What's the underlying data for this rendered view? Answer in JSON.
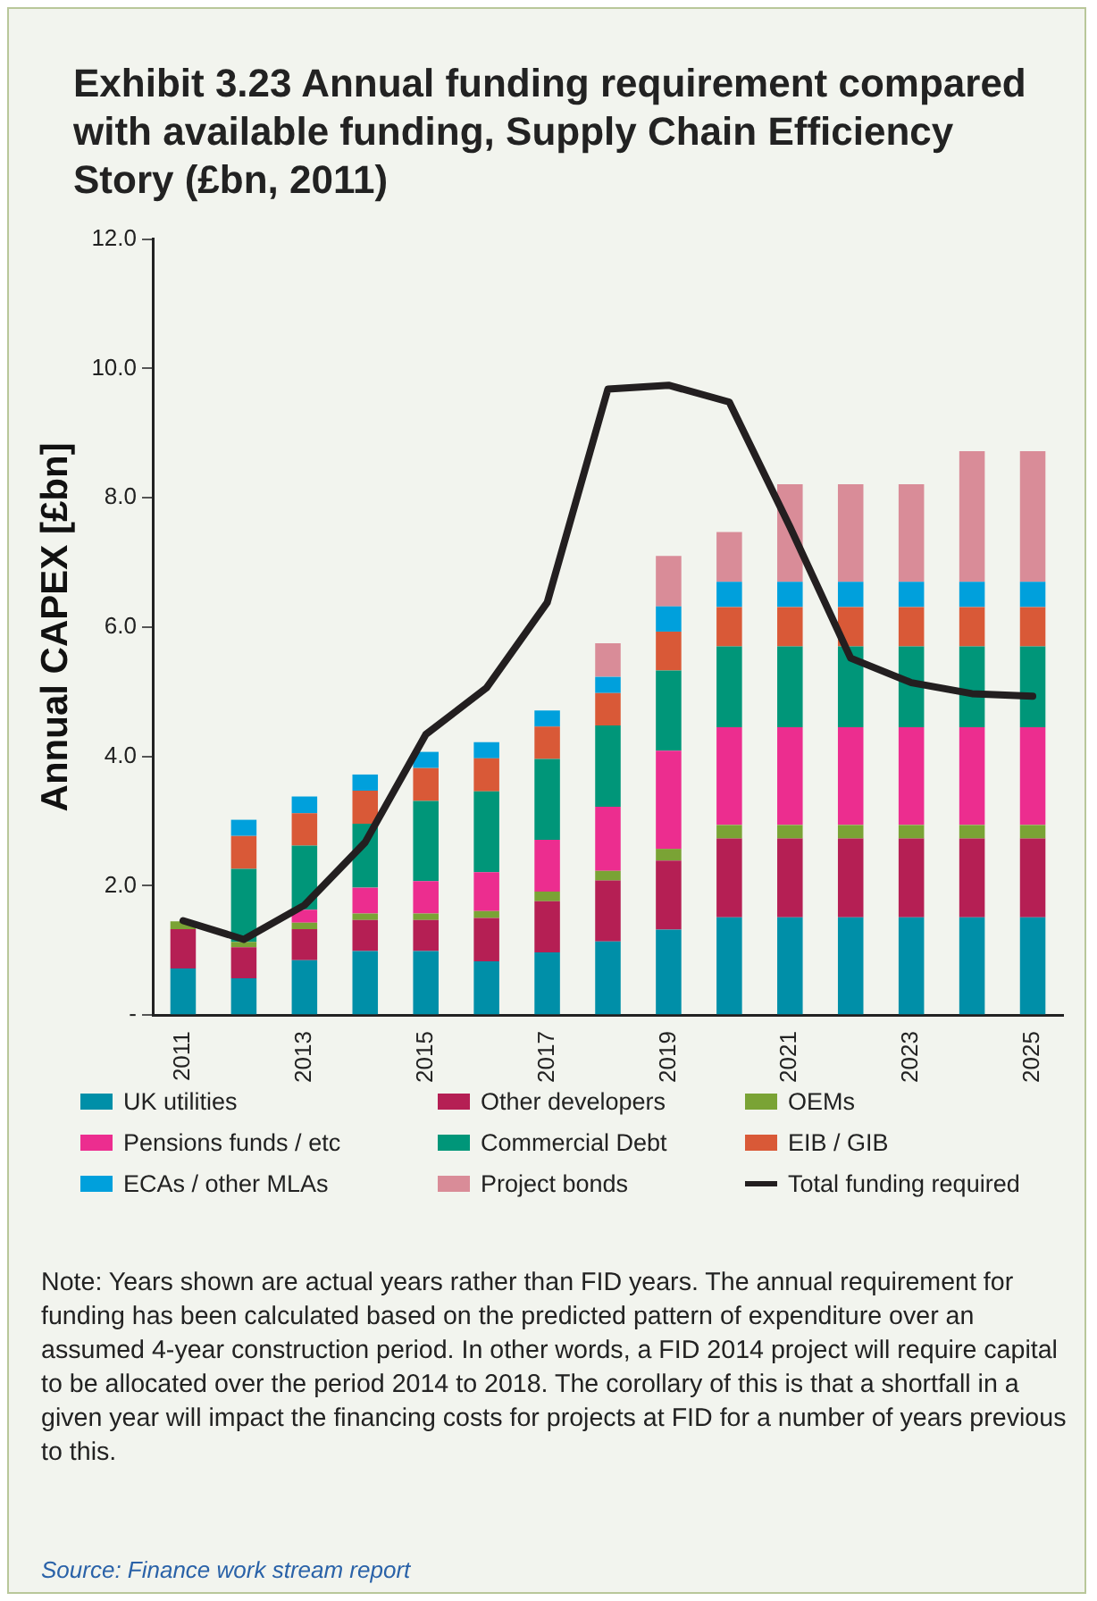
{
  "chart_data": {
    "type": "bar",
    "stacked": true,
    "title": "Exhibit 3.23 Annual funding requirement compared with available funding, Supply Chain Efficiency Story (£bn, 2011)",
    "ylabel": "Annual CAPEX [£bn]",
    "categories": [
      "2011",
      null,
      "2013",
      null,
      "2015",
      null,
      "2017",
      null,
      "2019",
      null,
      "2021",
      null,
      "2023",
      null,
      "2025"
    ],
    "ylim": [
      0,
      12
    ],
    "yticks": [
      {
        "value": 0,
        "label": "-"
      },
      {
        "value": 2,
        "label": "2.0"
      },
      {
        "value": 4,
        "label": "4.0"
      },
      {
        "value": 6,
        "label": "6.0"
      },
      {
        "value": 8,
        "label": "8.0"
      },
      {
        "value": 10,
        "label": "10.0"
      },
      {
        "value": 12,
        "label": "12.0"
      }
    ],
    "grid": false,
    "legend": "bottom",
    "series": [
      {
        "name": "UK utilities",
        "color": "#008fa8",
        "values": [
          0.72,
          0.57,
          0.85,
          0.99,
          0.99,
          0.83,
          0.97,
          1.14,
          1.32,
          1.51,
          1.51,
          1.51,
          1.51,
          1.51,
          1.51
        ]
      },
      {
        "name": "Other developers",
        "color": "#b51f54",
        "values": [
          0.61,
          0.48,
          0.48,
          0.48,
          0.48,
          0.67,
          0.79,
          0.94,
          1.07,
          1.22,
          1.22,
          1.22,
          1.22,
          1.22,
          1.22
        ]
      },
      {
        "name": "OEMs",
        "color": "#7aa335",
        "values": [
          0.12,
          0.08,
          0.1,
          0.1,
          0.1,
          0.11,
          0.15,
          0.15,
          0.18,
          0.21,
          0.21,
          0.21,
          0.21,
          0.21,
          0.21
        ]
      },
      {
        "name": "Pensions funds / etc",
        "color": "#ec2d8f",
        "values": [
          0,
          0,
          0.2,
          0.4,
          0.5,
          0.6,
          0.8,
          0.99,
          1.52,
          1.51,
          1.51,
          1.51,
          1.51,
          1.51,
          1.51
        ]
      },
      {
        "name": "Commercial Debt",
        "color": "#009679",
        "values": [
          0,
          1.13,
          0.99,
          0.99,
          1.24,
          1.25,
          1.25,
          1.26,
          1.24,
          1.25,
          1.25,
          1.25,
          1.25,
          1.25,
          1.25
        ]
      },
      {
        "name": "EIB / GIB",
        "color": "#d95937",
        "values": [
          0,
          0.51,
          0.5,
          0.51,
          0.51,
          0.51,
          0.5,
          0.5,
          0.6,
          0.61,
          0.61,
          0.61,
          0.61,
          0.61,
          0.61
        ]
      },
      {
        "name": "ECAs / other MLAs",
        "color": "#00a0dc",
        "values": [
          0,
          0.25,
          0.26,
          0.25,
          0.25,
          0.25,
          0.25,
          0.25,
          0.39,
          0.39,
          0.39,
          0.39,
          0.39,
          0.39,
          0.39
        ]
      },
      {
        "name": "Project bonds",
        "color": "#d98c98",
        "values": [
          0,
          0,
          0,
          0,
          0,
          0,
          0,
          0.52,
          0.78,
          0.77,
          1.51,
          1.51,
          1.51,
          2.02,
          2.02
        ]
      },
      {
        "name": "Total funding required",
        "type": "line",
        "color": "#231f20",
        "values": [
          1.46,
          1.17,
          1.7,
          2.67,
          4.34,
          5.06,
          6.38,
          9.68,
          9.74,
          9.48,
          7.55,
          5.52,
          5.14,
          4.97,
          4.93
        ]
      }
    ],
    "annotations": [
      "Note: Years shown are actual years rather than FID years. The annual requirement for funding has been calculated based on the predicted pattern of expenditure over an assumed 4-year construction period. In other words, a FID 2014 project will require capital to be allocated over the period 2014 to 2018. The corollary of this is that a shortfall in a given year will impact the financing costs for projects at FID for a number of years previous to this.",
      "Source: Finance work stream report"
    ]
  }
}
